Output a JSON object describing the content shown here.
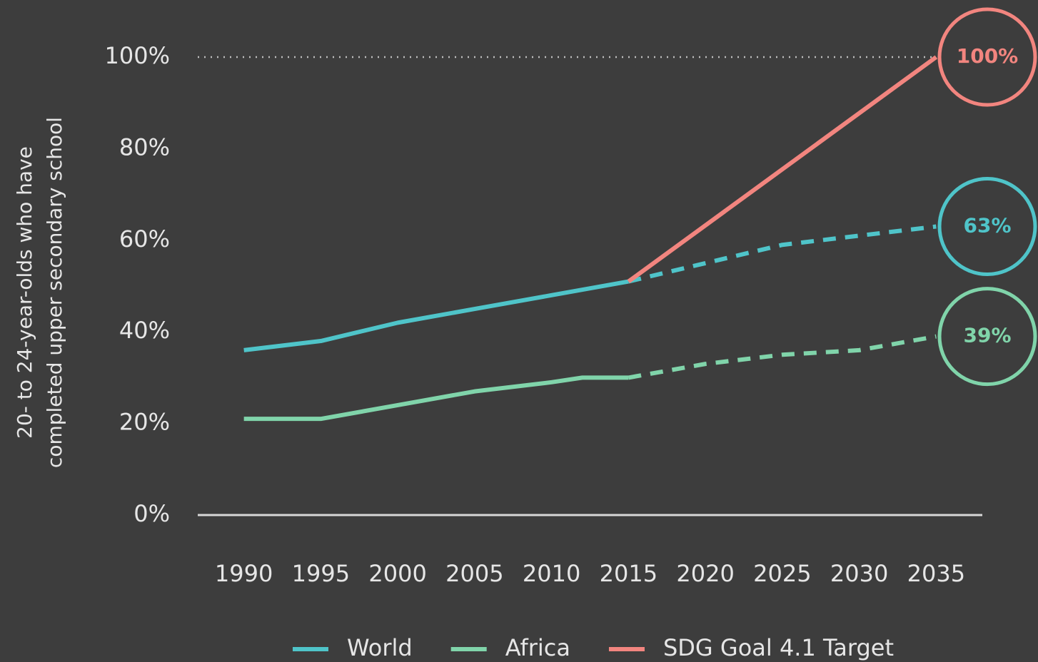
{
  "chart_data": {
    "type": "line",
    "ylabel": [
      "20- to 24-year-olds who have",
      "completed upper secondary school"
    ],
    "xlim": [
      1987,
      2038
    ],
    "xticks": [
      1990,
      1995,
      2000,
      2005,
      2010,
      2015,
      2020,
      2025,
      2030,
      2035
    ],
    "ylim": [
      0,
      100
    ],
    "yticks": [
      {
        "value": 0,
        "label": "0%"
      },
      {
        "value": 20,
        "label": "20%"
      },
      {
        "value": 40,
        "label": "40%"
      },
      {
        "value": 60,
        "label": "60%"
      },
      {
        "value": 80,
        "label": "80%"
      },
      {
        "value": 100,
        "label": "100%"
      }
    ],
    "legend": "bottom",
    "series": [
      {
        "name": "World",
        "color": "#4fc4c9",
        "x": [
          1990,
          1995,
          2000,
          2005,
          2010,
          2015
        ],
        "values": [
          36,
          38,
          42,
          45,
          48,
          51
        ],
        "projection": {
          "x": [
            2015,
            2020,
            2025,
            2030,
            2035
          ],
          "values": [
            51,
            55,
            59,
            61,
            63
          ],
          "value_labels": [
            null,
            null,
            null,
            null,
            "63%"
          ]
        }
      },
      {
        "name": "Africa",
        "color": "#80d4aa",
        "x": [
          1990,
          1995,
          2000,
          2005,
          2010,
          2012,
          2015
        ],
        "values": [
          21,
          21,
          24,
          27,
          29,
          30,
          30
        ],
        "projection": {
          "x": [
            2015,
            2020,
            2025,
            2030,
            2035
          ],
          "values": [
            30,
            33,
            35,
            36,
            39
          ],
          "value_labels": [
            null,
            null,
            null,
            null,
            "39%"
          ]
        }
      },
      {
        "name": "SDG Goal 4.1 Target",
        "color": "#f2857f",
        "x": [
          2015,
          2035
        ],
        "values": [
          51,
          100
        ],
        "value_labels": [
          null,
          "100%"
        ]
      }
    ]
  }
}
